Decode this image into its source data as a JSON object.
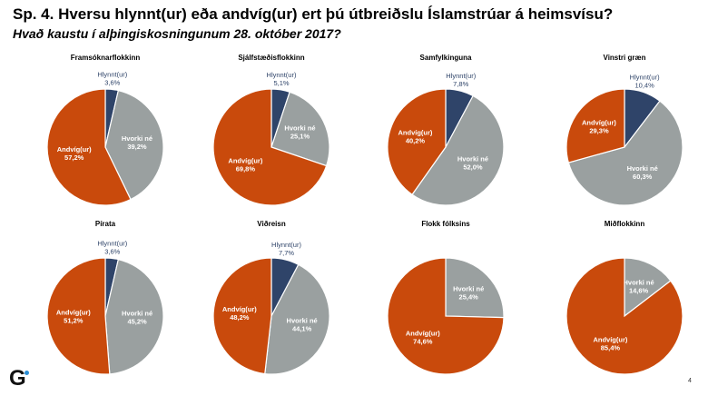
{
  "header": {
    "title": "Sp. 4. Hversu hlynnt(ur) eða andvíg(ur) ert þú útbreiðslu Íslamstrúar á heimsvísu?",
    "subtitle": "Hvað kaustu í alþingiskosningunum 28. október 2017?"
  },
  "colors": {
    "hlynnt": "#2f4469",
    "hvorki": "#9aa0a0",
    "andvig": "#c94a0c"
  },
  "footer": {
    "logo": "G",
    "page_number": "4"
  },
  "chart_data": [
    {
      "type": "pie",
      "title": "Framsóknarflokkinn",
      "slices": [
        {
          "label": "Hlynnt(ur)",
          "value_text": "3,6%",
          "value": 3.6,
          "color_key": "hlynnt"
        },
        {
          "label": "Hvorki né",
          "value_text": "39,2%",
          "value": 39.2,
          "color_key": "hvorki"
        },
        {
          "label": "Andvíg(ur)",
          "value_text": "57,2%",
          "value": 57.2,
          "color_key": "andvig"
        }
      ]
    },
    {
      "type": "pie",
      "title": "Sjálfstæðisflokkinn",
      "slices": [
        {
          "label": "Hlynnt(ur)",
          "value_text": "5,1%",
          "value": 5.1,
          "color_key": "hlynnt"
        },
        {
          "label": "Hvorki né",
          "value_text": "25,1%",
          "value": 25.1,
          "color_key": "hvorki"
        },
        {
          "label": "Andvíg(ur)",
          "value_text": "69,8%",
          "value": 69.8,
          "color_key": "andvig"
        }
      ]
    },
    {
      "type": "pie",
      "title": "Samfylkinguna",
      "slices": [
        {
          "label": "Hlynnt(ur)",
          "value_text": "7,8%",
          "value": 7.8,
          "color_key": "hlynnt"
        },
        {
          "label": "Hvorki né",
          "value_text": "52,0%",
          "value": 52.0,
          "color_key": "hvorki"
        },
        {
          "label": "Andvíg(ur)",
          "value_text": "40,2%",
          "value": 40.2,
          "color_key": "andvig"
        }
      ]
    },
    {
      "type": "pie",
      "title": "Vinstri græn",
      "slices": [
        {
          "label": "Hlynnt(ur)",
          "value_text": "10,4%",
          "value": 10.4,
          "color_key": "hlynnt"
        },
        {
          "label": "Hvorki né",
          "value_text": "60,3%",
          "value": 60.3,
          "color_key": "hvorki"
        },
        {
          "label": "Andvíg(ur)",
          "value_text": "29,3%",
          "value": 29.3,
          "color_key": "andvig"
        }
      ]
    },
    {
      "type": "pie",
      "title": "Pírata",
      "slices": [
        {
          "label": "Hlynnt(ur)",
          "value_text": "3,6%",
          "value": 3.6,
          "color_key": "hlynnt"
        },
        {
          "label": "Hvorki né",
          "value_text": "45,2%",
          "value": 45.2,
          "color_key": "hvorki"
        },
        {
          "label": "Andvíg(ur)",
          "value_text": "51,2%",
          "value": 51.2,
          "color_key": "andvig"
        }
      ]
    },
    {
      "type": "pie",
      "title": "Viðreisn",
      "slices": [
        {
          "label": "Hlynnt(ur)",
          "value_text": "7,7%",
          "value": 7.7,
          "color_key": "hlynnt"
        },
        {
          "label": "Hvorki né",
          "value_text": "44,1%",
          "value": 44.1,
          "color_key": "hvorki"
        },
        {
          "label": "Andvíg(ur)",
          "value_text": "48,2%",
          "value": 48.2,
          "color_key": "andvig"
        }
      ]
    },
    {
      "type": "pie",
      "title": "Flokk fólksins",
      "slices": [
        {
          "label": "Hvorki né",
          "value_text": "25,4%",
          "value": 25.4,
          "color_key": "hvorki"
        },
        {
          "label": "Andvíg(ur)",
          "value_text": "74,6%",
          "value": 74.6,
          "color_key": "andvig"
        }
      ]
    },
    {
      "type": "pie",
      "title": "Miðflokkinn",
      "slices": [
        {
          "label": "Hvorki né",
          "value_text": "14,6%",
          "value": 14.6,
          "color_key": "hvorki"
        },
        {
          "label": "Andvíg(ur)",
          "value_text": "85,4%",
          "value": 85.4,
          "color_key": "andvig"
        }
      ]
    }
  ]
}
